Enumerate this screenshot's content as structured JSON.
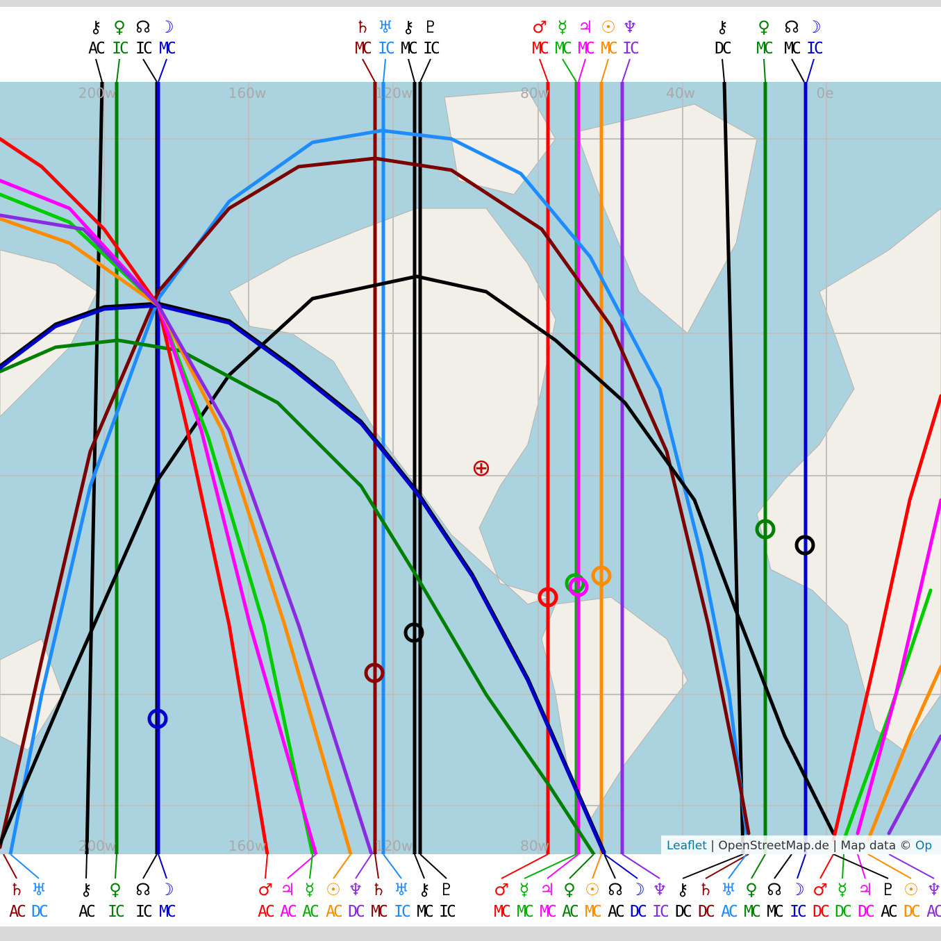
{
  "top_labels": [
    {
      "symbol": "⚷",
      "line": "AC",
      "color": "#000000"
    },
    {
      "symbol": "♀",
      "line": "IC",
      "color": "#008000"
    },
    {
      "symbol": "☊",
      "line": "IC",
      "color": "#000000"
    },
    {
      "symbol": "☽",
      "line": "MC",
      "color": "#0000cc"
    },
    {
      "symbol": "♄",
      "line": "MC",
      "color": "#8b0000"
    },
    {
      "symbol": "♅",
      "line": "IC",
      "color": "#1e8cff"
    },
    {
      "symbol": "⚷",
      "line": "MC",
      "color": "#000000"
    },
    {
      "symbol": "♇",
      "line": "IC",
      "color": "#000000"
    },
    {
      "symbol": "♂",
      "line": "MC",
      "color": "#ff0000"
    },
    {
      "symbol": "☿",
      "line": "MC",
      "color": "#00b000"
    },
    {
      "symbol": "♃",
      "line": "MC",
      "color": "#ff00ff"
    },
    {
      "symbol": "☉",
      "line": "MC",
      "color": "#ff8c00"
    },
    {
      "symbol": "♆",
      "line": "IC",
      "color": "#8a2be2"
    },
    {
      "symbol": "⚷",
      "line": "DC",
      "color": "#000000"
    },
    {
      "symbol": "♀",
      "line": "MC",
      "color": "#008000"
    },
    {
      "symbol": "☊",
      "line": "MC",
      "color": "#000000"
    },
    {
      "symbol": "☽",
      "line": "IC",
      "color": "#0000cc"
    }
  ],
  "bottom_labels": [
    {
      "symbol": "♄",
      "line": "AC",
      "color": "#8b0000"
    },
    {
      "symbol": "♅",
      "line": "DC",
      "color": "#1e8cff"
    },
    {
      "symbol": "⚷",
      "line": "AC",
      "color": "#000000"
    },
    {
      "symbol": "♀",
      "line": "IC",
      "color": "#008000"
    },
    {
      "symbol": "☊",
      "line": "IC",
      "color": "#000000"
    },
    {
      "symbol": "☽",
      "line": "MC",
      "color": "#0000cc"
    },
    {
      "symbol": "♂",
      "line": "AC",
      "color": "#ff0000"
    },
    {
      "symbol": "♃",
      "line": "AC",
      "color": "#ff00ff"
    },
    {
      "symbol": "☿",
      "line": "AC",
      "color": "#00b000"
    },
    {
      "symbol": "☉",
      "line": "AC",
      "color": "#ff8c00"
    },
    {
      "symbol": "♆",
      "line": "DC",
      "color": "#8a2be2"
    },
    {
      "symbol": "♄",
      "line": "MC",
      "color": "#8b0000"
    },
    {
      "symbol": "♅",
      "line": "IC",
      "color": "#1e8cff"
    },
    {
      "symbol": "⚷",
      "line": "MC",
      "color": "#000000"
    },
    {
      "symbol": "♇",
      "line": "IC",
      "color": "#000000"
    },
    {
      "symbol": "♂",
      "line": "MC",
      "color": "#ff0000"
    },
    {
      "symbol": "☿",
      "line": "MC",
      "color": "#00b000"
    },
    {
      "symbol": "♃",
      "line": "MC",
      "color": "#ff00ff"
    },
    {
      "symbol": "♀",
      "line": "AC",
      "color": "#008000"
    },
    {
      "symbol": "☉",
      "line": "MC",
      "color": "#ff8c00"
    },
    {
      "symbol": "☊",
      "line": "AC",
      "color": "#000000"
    },
    {
      "symbol": "☽",
      "line": "DC",
      "color": "#0000cc"
    },
    {
      "symbol": "♆",
      "line": "IC",
      "color": "#8a2be2"
    },
    {
      "symbol": "⚷",
      "line": "DC",
      "color": "#000000"
    },
    {
      "symbol": "♄",
      "line": "DC",
      "color": "#8b0000"
    },
    {
      "symbol": "♅",
      "line": "AC",
      "color": "#1e8cff"
    },
    {
      "symbol": "♀",
      "line": "MC",
      "color": "#008000"
    },
    {
      "symbol": "☊",
      "line": "MC",
      "color": "#000000"
    },
    {
      "symbol": "☽",
      "line": "IC",
      "color": "#0000cc"
    },
    {
      "symbol": "♂",
      "line": "DC",
      "color": "#ff0000"
    },
    {
      "symbol": "☿",
      "line": "DC",
      "color": "#00b000"
    },
    {
      "symbol": "♃",
      "line": "DC",
      "color": "#ff00ff"
    },
    {
      "symbol": "♇",
      "line": "AC",
      "color": "#000000"
    },
    {
      "symbol": "☉",
      "line": "DC",
      "color": "#ff8c00"
    },
    {
      "symbol": "♆",
      "line": "AC",
      "color": "#8a2be2"
    }
  ],
  "grid_labels": [
    "200w",
    "160w",
    "120w",
    "80w",
    "40w",
    "0e"
  ],
  "attribution": {
    "link": "Leaflet",
    "text": " | OpenStreetMap.de | Map data © ",
    "link2": "Op"
  },
  "center_marker": "⊕"
}
